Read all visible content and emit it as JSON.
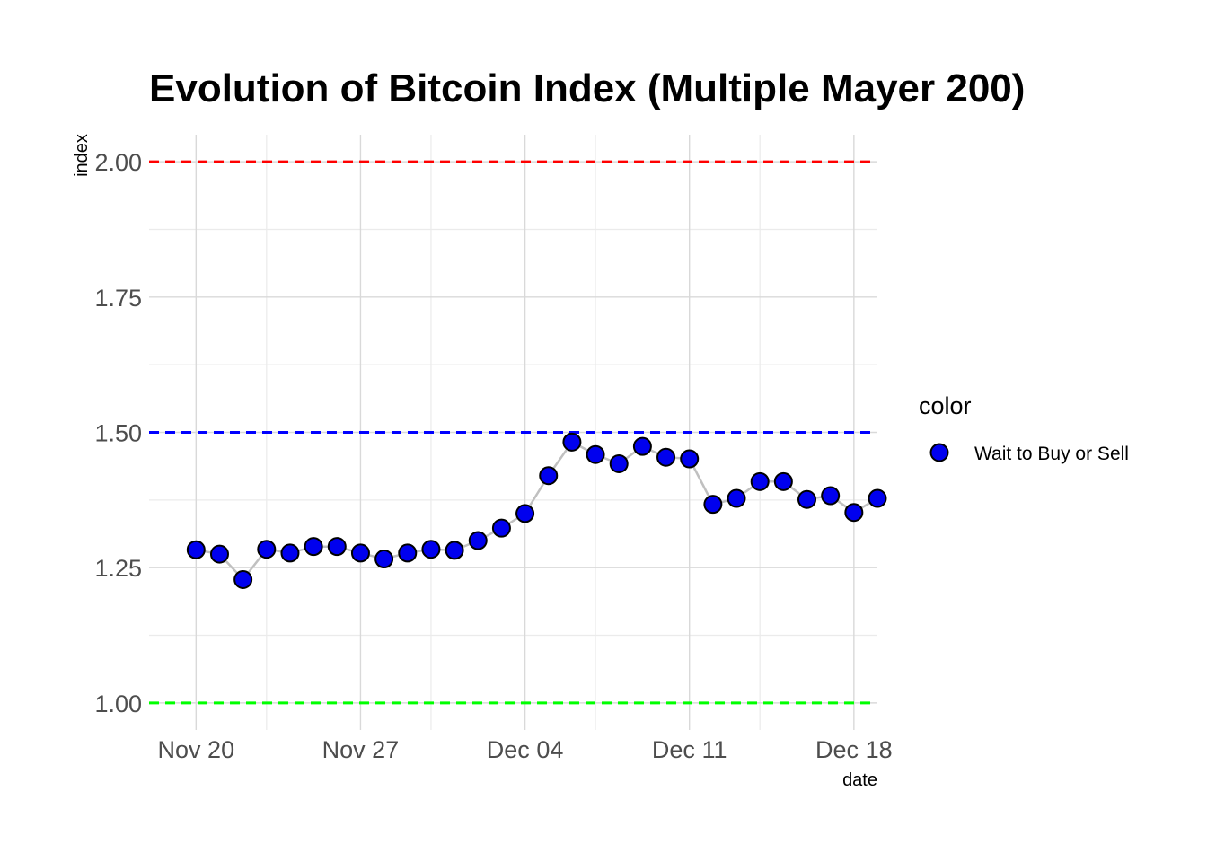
{
  "chart_data": {
    "type": "line",
    "title": "Evolution of Bitcoin Index (Multiple Mayer 200)",
    "xlabel": "date",
    "ylabel": "index",
    "x_ticks": [
      {
        "date": "2023-11-20",
        "label": "Nov 20"
      },
      {
        "date": "2023-11-27",
        "label": "Nov 27"
      },
      {
        "date": "2023-12-04",
        "label": "Dec 04"
      },
      {
        "date": "2023-12-11",
        "label": "Dec 11"
      },
      {
        "date": "2023-12-18",
        "label": "Dec 18"
      }
    ],
    "y_ticks": [
      1.0,
      1.25,
      1.5,
      1.75,
      2.0
    ],
    "y_tick_labels": [
      "1.00",
      "1.25",
      "1.50",
      "1.75",
      "2.00"
    ],
    "xlim": [
      "2023-11-18",
      "2023-12-19"
    ],
    "ylim": [
      0.95,
      2.05
    ],
    "grid": true,
    "reference_lines": [
      {
        "y": 2.0,
        "color": "#ff0000",
        "style": "dashed"
      },
      {
        "y": 1.5,
        "color": "#0000ff",
        "style": "dashed"
      },
      {
        "y": 1.0,
        "color": "#00ff00",
        "style": "dashed"
      }
    ],
    "legend": {
      "title": "color",
      "position": "right",
      "entries": [
        {
          "label": "Wait to Buy or Sell",
          "color": "#0000ee"
        }
      ]
    },
    "series": [
      {
        "color": "#0000ee",
        "line_color": "#c0c0c0",
        "x": [
          "2023-11-20",
          "2023-11-21",
          "2023-11-22",
          "2023-11-23",
          "2023-11-24",
          "2023-11-25",
          "2023-11-26",
          "2023-11-27",
          "2023-11-28",
          "2023-11-29",
          "2023-11-30",
          "2023-12-01",
          "2023-12-02",
          "2023-12-03",
          "2023-12-04",
          "2023-12-05",
          "2023-12-06",
          "2023-12-07",
          "2023-12-08",
          "2023-12-09",
          "2023-12-10",
          "2023-12-11",
          "2023-12-12",
          "2023-12-13",
          "2023-12-14",
          "2023-12-15",
          "2023-12-16",
          "2023-12-17",
          "2023-12-18",
          "2023-12-19"
        ],
        "values": [
          1.283,
          1.275,
          1.228,
          1.284,
          1.277,
          1.289,
          1.289,
          1.277,
          1.266,
          1.277,
          1.284,
          1.282,
          1.3,
          1.323,
          1.35,
          1.42,
          1.482,
          1.459,
          1.442,
          1.474,
          1.454,
          1.451,
          1.367,
          1.378,
          1.409,
          1.409,
          1.376,
          1.383,
          1.352,
          1.378
        ]
      }
    ]
  }
}
